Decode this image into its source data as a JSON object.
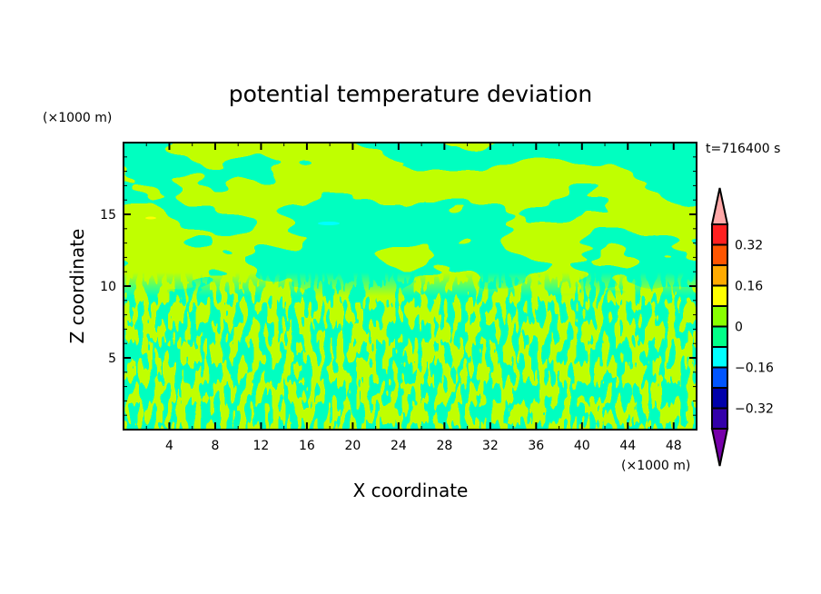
{
  "chart_data": {
    "type": "heatmap",
    "title": "potential temperature deviation",
    "xlabel": "X coordinate",
    "ylabel": "Z coordinate",
    "x_unit": "(×1000 m)",
    "y_unit": "(×1000 m)",
    "time_label": "t=716400 s",
    "xlim": [
      0,
      50
    ],
    "ylim": [
      0,
      20
    ],
    "x_ticks": [
      4,
      8,
      12,
      16,
      20,
      24,
      28,
      32,
      36,
      40,
      44,
      48
    ],
    "y_ticks": [
      5,
      10,
      15
    ],
    "colorbar": {
      "levels": [
        -0.4,
        -0.32,
        -0.24,
        -0.16,
        -0.08,
        0,
        0.08,
        0.16,
        0.24,
        0.32,
        0.4
      ],
      "tick_values": [
        0.32,
        0.16,
        0,
        -0.16,
        -0.32
      ],
      "tick_labels": [
        "0.32",
        "0.16",
        "0",
        "−0.16",
        "−0.32"
      ],
      "colors_top_to_bottom": [
        "#ffa8a8",
        "#ff2020",
        "#ff5500",
        "#ffaa00",
        "#ffff00",
        "#88ff00",
        "#00ff88",
        "#00ffff",
        "#0055ff",
        "#0000aa",
        "#3300aa",
        "#7700aa"
      ],
      "extend": "both"
    },
    "dominant_fields": {
      "positive_0_to_0.08": "#88ff00",
      "negative_-0.08_to_0": "#00ff88"
    }
  }
}
